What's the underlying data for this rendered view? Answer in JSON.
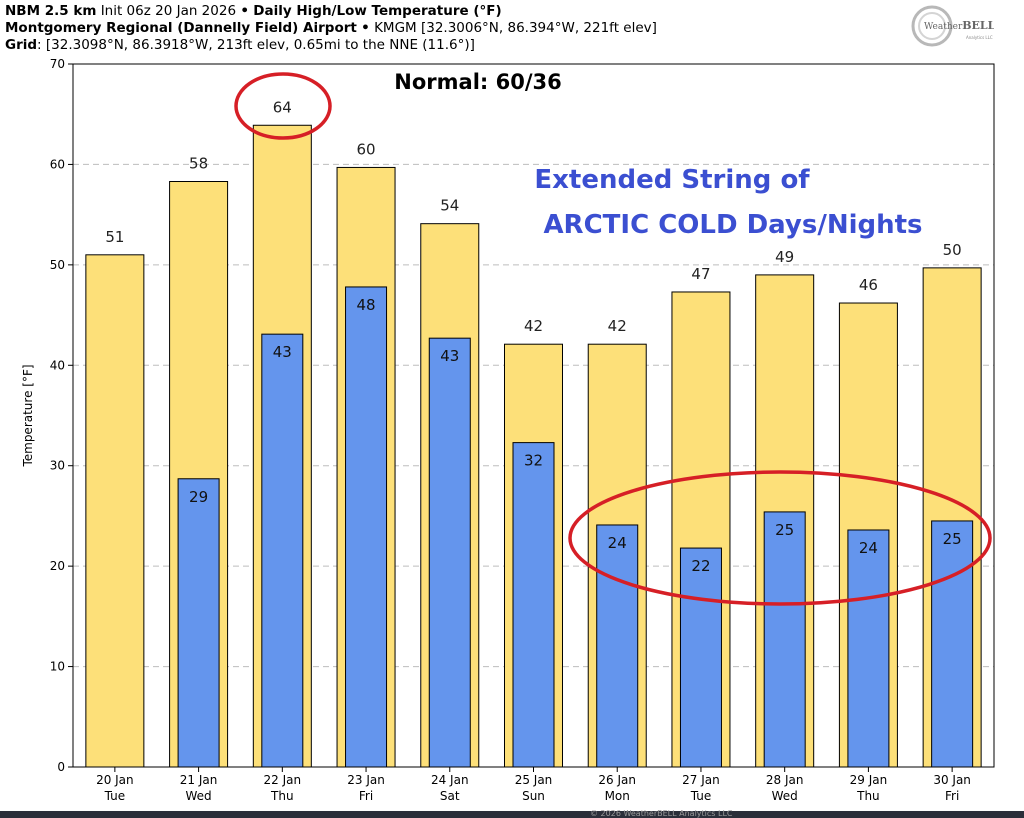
{
  "header": {
    "line1_bold": "NBM 2.5 km",
    "line1_init": "Init 06z 20 Jan 2026",
    "line1_sep": "•",
    "line1_title": "Daily High/Low Temperature (°F)",
    "line2_station": "Montgomery Regional (Dannelly Field) Airport",
    "line2_sep": "•",
    "line2_info": "KMGM [32.3006°N, 86.394°W, 221ft elev]",
    "line3_label": "Grid",
    "line3_info": ": [32.3098°N, 86.3918°W, 213ft elev, 0.65mi to the NNE (11.6°)]"
  },
  "logo": {
    "text_a": "Weather",
    "text_b": "BELL",
    "subtext": "Analytics LLC"
  },
  "footer": {
    "text": "© 2026 WeatherBELL Analytics LLC"
  },
  "colors": {
    "high": "#fde079",
    "low": "#6495ed",
    "annotation_red": "#d61f26",
    "annotation_blue": "#3b4fd1",
    "grid": "#bdbdbd"
  },
  "chart_data": {
    "type": "bar",
    "ylabel": "Temperature [°F]",
    "ylim": [
      0,
      70
    ],
    "yticks": [
      0,
      10,
      20,
      30,
      40,
      50,
      60,
      70
    ],
    "grid": "horizontal dashed",
    "categories": [
      {
        "date": "20 Jan",
        "dow": "Tue"
      },
      {
        "date": "21 Jan",
        "dow": "Wed"
      },
      {
        "date": "22 Jan",
        "dow": "Thu"
      },
      {
        "date": "23 Jan",
        "dow": "Fri"
      },
      {
        "date": "24 Jan",
        "dow": "Sat"
      },
      {
        "date": "25 Jan",
        "dow": "Sun"
      },
      {
        "date": "26 Jan",
        "dow": "Mon"
      },
      {
        "date": "27 Jan",
        "dow": "Tue"
      },
      {
        "date": "28 Jan",
        "dow": "Wed"
      },
      {
        "date": "29 Jan",
        "dow": "Thu"
      },
      {
        "date": "30 Jan",
        "dow": "Fri"
      }
    ],
    "series": [
      {
        "role": "high",
        "values": [
          51,
          58.3,
          63.9,
          59.7,
          54.1,
          42.1,
          42.1,
          47.3,
          49,
          46.2,
          49.7
        ],
        "labels": [
          "51",
          "58",
          "64",
          "60",
          "54",
          "42",
          "42",
          "47",
          "49",
          "46",
          "50"
        ]
      },
      {
        "role": "low",
        "values": [
          null,
          28.7,
          43.1,
          47.8,
          42.7,
          32.3,
          24.1,
          21.8,
          25.4,
          23.6,
          24.5
        ],
        "labels": [
          "",
          "29",
          "43",
          "48",
          "43",
          "32",
          "24",
          "22",
          "25",
          "24",
          "25"
        ]
      }
    ],
    "annotations": {
      "normal": "Normal: 60/36",
      "headline_line1": "Extended String of",
      "headline_line2": "ARCTIC COLD Days/Nights",
      "circled_high_index": 2,
      "circled_low_range": [
        6,
        10
      ]
    }
  }
}
